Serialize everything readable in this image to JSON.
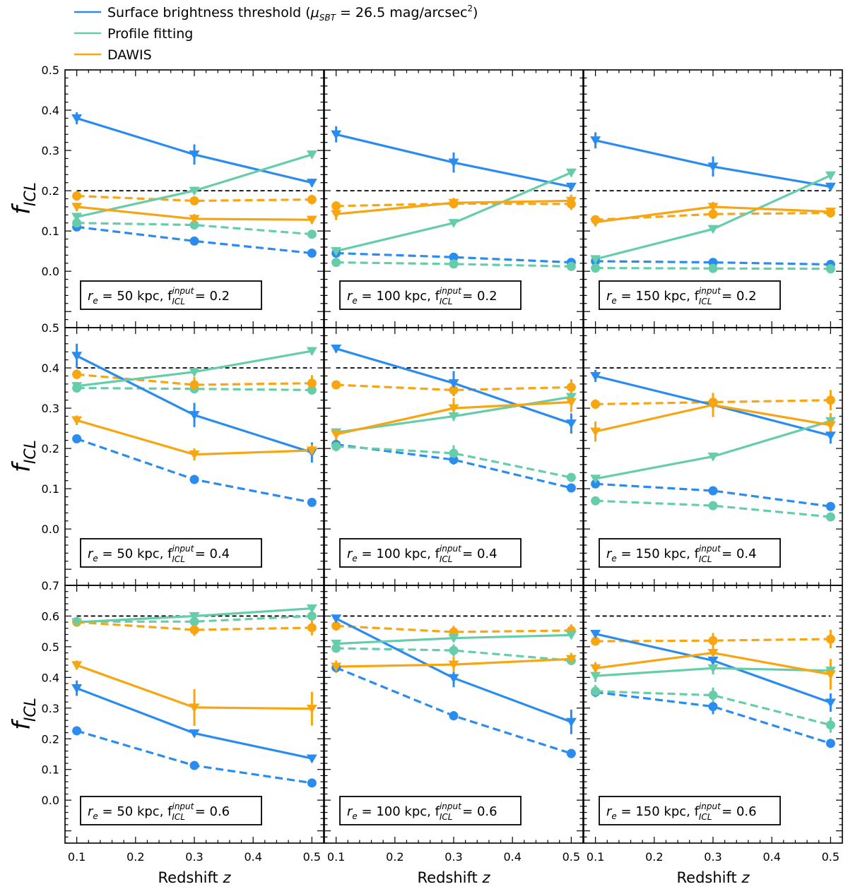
{
  "colors": {
    "sbt": "#2b8cf0",
    "profile": "#66cdaa",
    "dawis": "#f8a512",
    "reference": "#000000"
  },
  "legend": [
    {
      "key": "sbt",
      "label_main": "Surface brightness threshold (",
      "label_mu": "μ",
      "label_sub": "SBT",
      "label_rest": " = 26.5 mag/arcsec",
      "label_sup": "2",
      "label_close": ")"
    },
    {
      "key": "profile",
      "label_main": "Profile fitting"
    },
    {
      "key": "dawis",
      "label_main": "DAWIS"
    }
  ],
  "axes": {
    "xlabel": "Redshift z",
    "xlabel_text": "Redshift ",
    "xlabel_var": "z",
    "ylabel_main": "f",
    "ylabel_sub": "ICL",
    "xlim": [
      0.08,
      0.52
    ],
    "xticks": [
      0.1,
      0.2,
      0.3,
      0.4,
      0.5
    ],
    "xtick_labels": [
      "0.1",
      "0.2",
      "0.3",
      "0.4",
      "0.5"
    ],
    "rows": [
      {
        "ylim": [
          -0.14,
          0.5
        ],
        "yticks": [
          0.0,
          0.1,
          0.2,
          0.3,
          0.4,
          0.5
        ],
        "ytick_labels": [
          "0.0",
          "0.1",
          "0.2",
          "0.3",
          "0.4",
          "0.5"
        ]
      },
      {
        "ylim": [
          -0.14,
          0.5
        ],
        "yticks": [
          0.0,
          0.1,
          0.2,
          0.3,
          0.4,
          0.5
        ],
        "ytick_labels": [
          "0.0",
          "0.1",
          "0.2",
          "0.3",
          "0.4",
          "0.5"
        ]
      },
      {
        "ylim": [
          -0.14,
          0.7
        ],
        "yticks": [
          0.0,
          0.1,
          0.2,
          0.3,
          0.4,
          0.5,
          0.6,
          0.7
        ],
        "ytick_labels": [
          "0.0",
          "0.1",
          "0.2",
          "0.3",
          "0.4",
          "0.5",
          "0.6",
          "0.7"
        ]
      }
    ]
  },
  "chart_data": {
    "type": "line",
    "x": [
      0.1,
      0.3,
      0.5
    ],
    "xlabel": "Redshift z",
    "ylabel": "f_ICL",
    "line_styles": {
      "triangle": "solid line, downward triangle markers",
      "circle": "dashed line, circle markers"
    },
    "panels": [
      {
        "row": 0,
        "col": 0,
        "annot_re": "50",
        "annot_f": "0.2",
        "reference": 0.2,
        "series": [
          {
            "method": "sbt",
            "marker": "triangle",
            "y": [
              0.38,
              0.29,
              0.22
            ],
            "err": [
              0.015,
              0.025,
              0.01
            ]
          },
          {
            "method": "profile",
            "marker": "triangle",
            "y": [
              0.135,
              0.2,
              0.29
            ],
            "err": [
              0.01,
              0.01,
              0.008
            ]
          },
          {
            "method": "dawis",
            "marker": "triangle",
            "y": [
              0.16,
              0.13,
              0.128
            ],
            "err": [
              0.01,
              0.012,
              0.01
            ]
          },
          {
            "method": "sbt",
            "marker": "circle",
            "y": [
              0.11,
              0.075,
              0.045
            ],
            "err": [
              0.005,
              0.005,
              0.004
            ]
          },
          {
            "method": "profile",
            "marker": "circle",
            "y": [
              0.12,
              0.115,
              0.092
            ],
            "err": [
              0.01,
              0.01,
              0.008
            ]
          },
          {
            "method": "dawis",
            "marker": "circle",
            "y": [
              0.187,
              0.175,
              0.178
            ],
            "err": [
              0.012,
              0.01,
              0.012
            ]
          }
        ]
      },
      {
        "row": 0,
        "col": 1,
        "annot_re": "100",
        "annot_f": "0.2",
        "reference": 0.2,
        "series": [
          {
            "method": "sbt",
            "marker": "triangle",
            "y": [
              0.34,
              0.27,
              0.21
            ],
            "err": [
              0.02,
              0.025,
              0.01
            ]
          },
          {
            "method": "profile",
            "marker": "triangle",
            "y": [
              0.05,
              0.12,
              0.245
            ],
            "err": [
              0.008,
              0.008,
              0.01
            ]
          },
          {
            "method": "dawis",
            "marker": "triangle",
            "y": [
              0.142,
              0.17,
              0.175
            ],
            "err": [
              0.015,
              0.012,
              0.015
            ]
          },
          {
            "method": "sbt",
            "marker": "circle",
            "y": [
              0.045,
              0.035,
              0.022
            ],
            "err": [
              0.004,
              0.004,
              0.003
            ]
          },
          {
            "method": "profile",
            "marker": "circle",
            "y": [
              0.022,
              0.018,
              0.012
            ],
            "err": [
              0.004,
              0.004,
              0.003
            ]
          },
          {
            "method": "dawis",
            "marker": "circle",
            "y": [
              0.162,
              0.168,
              0.167
            ],
            "err": [
              0.012,
              0.012,
              0.015
            ]
          }
        ]
      },
      {
        "row": 0,
        "col": 2,
        "annot_re": "150",
        "annot_f": "0.2",
        "reference": 0.2,
        "series": [
          {
            "method": "sbt",
            "marker": "triangle",
            "y": [
              0.325,
              0.26,
              0.21
            ],
            "err": [
              0.02,
              0.025,
              0.01
            ]
          },
          {
            "method": "profile",
            "marker": "triangle",
            "y": [
              0.03,
              0.105,
              0.238
            ],
            "err": [
              0.008,
              0.008,
              0.01
            ]
          },
          {
            "method": "dawis",
            "marker": "triangle",
            "y": [
              0.122,
              0.16,
              0.148
            ],
            "err": [
              0.01,
              0.012,
              0.01
            ]
          },
          {
            "method": "sbt",
            "marker": "circle",
            "y": [
              0.025,
              0.022,
              0.017
            ],
            "err": [
              0.004,
              0.004,
              0.003
            ]
          },
          {
            "method": "profile",
            "marker": "circle",
            "y": [
              0.008,
              0.007,
              0.006
            ],
            "err": [
              0.003,
              0.003,
              0.002
            ]
          },
          {
            "method": "dawis",
            "marker": "circle",
            "y": [
              0.128,
              0.142,
              0.145
            ],
            "err": [
              0.01,
              0.012,
              0.012
            ]
          }
        ]
      },
      {
        "row": 1,
        "col": 0,
        "annot_re": "50",
        "annot_f": "0.4",
        "reference": 0.4,
        "series": [
          {
            "method": "sbt",
            "marker": "triangle",
            "y": [
              0.43,
              0.283,
              0.19
            ],
            "err": [
              0.03,
              0.03,
              0.025
            ]
          },
          {
            "method": "profile",
            "marker": "triangle",
            "y": [
              0.355,
              0.39,
              0.442
            ],
            "err": [
              0.01,
              0.01,
              0.008
            ]
          },
          {
            "method": "dawis",
            "marker": "triangle",
            "y": [
              0.27,
              0.185,
              0.195
            ],
            "err": [
              0.012,
              0.015,
              0.015
            ]
          },
          {
            "method": "sbt",
            "marker": "circle",
            "y": [
              0.224,
              0.123,
              0.066
            ],
            "err": [
              0.006,
              0.008,
              0.006
            ]
          },
          {
            "method": "profile",
            "marker": "circle",
            "y": [
              0.35,
              0.348,
              0.345
            ],
            "err": [
              0.008,
              0.01,
              0.01
            ]
          },
          {
            "method": "dawis",
            "marker": "circle",
            "y": [
              0.384,
              0.358,
              0.362
            ],
            "err": [
              0.012,
              0.02,
              0.02
            ]
          }
        ]
      },
      {
        "row": 1,
        "col": 1,
        "annot_re": "100",
        "annot_f": "0.4",
        "reference": 0.4,
        "series": [
          {
            "method": "sbt",
            "marker": "triangle",
            "y": [
              0.448,
              0.362,
              0.262
            ],
            "err": [
              0.01,
              0.03,
              0.025
            ]
          },
          {
            "method": "profile",
            "marker": "triangle",
            "y": [
              0.24,
              0.28,
              0.328
            ],
            "err": [
              0.01,
              0.012,
              0.012
            ]
          },
          {
            "method": "dawis",
            "marker": "triangle",
            "y": [
              0.235,
              0.3,
              0.315
            ],
            "err": [
              0.015,
              0.025,
              0.025
            ]
          },
          {
            "method": "sbt",
            "marker": "circle",
            "y": [
              0.21,
              0.172,
              0.102
            ],
            "err": [
              0.01,
              0.012,
              0.008
            ]
          },
          {
            "method": "profile",
            "marker": "circle",
            "y": [
              0.205,
              0.188,
              0.128
            ],
            "err": [
              0.012,
              0.02,
              0.01
            ]
          },
          {
            "method": "dawis",
            "marker": "circle",
            "y": [
              0.358,
              0.345,
              0.352
            ],
            "err": [
              0.01,
              0.015,
              0.02
            ]
          }
        ]
      },
      {
        "row": 1,
        "col": 2,
        "annot_re": "150",
        "annot_f": "0.4",
        "reference": 0.4,
        "series": [
          {
            "method": "sbt",
            "marker": "triangle",
            "y": [
              0.38,
              0.308,
              0.232
            ],
            "err": [
              0.015,
              0.025,
              0.02
            ]
          },
          {
            "method": "profile",
            "marker": "triangle",
            "y": [
              0.125,
              0.18,
              0.268
            ],
            "err": [
              0.008,
              0.008,
              0.012
            ]
          },
          {
            "method": "dawis",
            "marker": "triangle",
            "y": [
              0.242,
              0.308,
              0.258
            ],
            "err": [
              0.025,
              0.03,
              0.03
            ]
          },
          {
            "method": "sbt",
            "marker": "circle",
            "y": [
              0.112,
              0.095,
              0.056
            ],
            "err": [
              0.008,
              0.008,
              0.006
            ]
          },
          {
            "method": "profile",
            "marker": "circle",
            "y": [
              0.07,
              0.058,
              0.03
            ],
            "err": [
              0.008,
              0.008,
              0.005
            ]
          },
          {
            "method": "dawis",
            "marker": "circle",
            "y": [
              0.31,
              0.315,
              0.32
            ],
            "err": [
              0.012,
              0.015,
              0.025
            ]
          }
        ]
      },
      {
        "row": 2,
        "col": 0,
        "annot_re": "50",
        "annot_f": "0.6",
        "reference": 0.6,
        "series": [
          {
            "method": "sbt",
            "marker": "triangle",
            "y": [
              0.365,
              0.218,
              0.136
            ],
            "err": [
              0.025,
              0.01,
              0.012
            ]
          },
          {
            "method": "profile",
            "marker": "triangle",
            "y": [
              0.58,
              0.6,
              0.625
            ],
            "err": [
              0.01,
              0.012,
              0.01
            ]
          },
          {
            "method": "dawis",
            "marker": "triangle",
            "y": [
              0.44,
              0.302,
              0.298
            ],
            "err": [
              0.015,
              0.06,
              0.055
            ]
          },
          {
            "method": "sbt",
            "marker": "circle",
            "y": [
              0.226,
              0.113,
              0.056
            ],
            "err": [
              0.006,
              0.008,
              0.006
            ]
          },
          {
            "method": "profile",
            "marker": "circle",
            "y": [
              0.582,
              0.582,
              0.6
            ],
            "err": [
              0.01,
              0.015,
              0.01
            ]
          },
          {
            "method": "dawis",
            "marker": "circle",
            "y": [
              0.58,
              0.555,
              0.562
            ],
            "err": [
              0.012,
              0.02,
              0.025
            ]
          }
        ]
      },
      {
        "row": 2,
        "col": 1,
        "annot_re": "100",
        "annot_f": "0.6",
        "reference": 0.6,
        "series": [
          {
            "method": "sbt",
            "marker": "triangle",
            "y": [
              0.592,
              0.398,
              0.255
            ],
            "err": [
              0.01,
              0.03,
              0.04
            ]
          },
          {
            "method": "profile",
            "marker": "triangle",
            "y": [
              0.51,
              0.528,
              0.538
            ],
            "err": [
              0.012,
              0.012,
              0.01
            ]
          },
          {
            "method": "dawis",
            "marker": "triangle",
            "y": [
              0.435,
              0.442,
              0.46
            ],
            "err": [
              0.02,
              0.025,
              0.02
            ]
          },
          {
            "method": "sbt",
            "marker": "circle",
            "y": [
              0.432,
              0.275,
              0.152
            ],
            "err": [
              0.012,
              0.015,
              0.015
            ]
          },
          {
            "method": "profile",
            "marker": "circle",
            "y": [
              0.495,
              0.488,
              0.455
            ],
            "err": [
              0.012,
              0.02,
              0.012
            ]
          },
          {
            "method": "dawis",
            "marker": "circle",
            "y": [
              0.568,
              0.548,
              0.553
            ],
            "err": [
              0.015,
              0.02,
              0.02
            ]
          }
        ]
      },
      {
        "row": 2,
        "col": 2,
        "annot_re": "150",
        "annot_f": "0.6",
        "reference": 0.6,
        "series": [
          {
            "method": "sbt",
            "marker": "triangle",
            "y": [
              0.542,
              0.455,
              0.318
            ],
            "err": [
              0.01,
              0.025,
              0.03
            ]
          },
          {
            "method": "profile",
            "marker": "triangle",
            "y": [
              0.405,
              0.43,
              0.422
            ],
            "err": [
              0.02,
              0.02,
              0.02
            ]
          },
          {
            "method": "dawis",
            "marker": "triangle",
            "y": [
              0.43,
              0.48,
              0.41
            ],
            "err": [
              0.02,
              0.02,
              0.05
            ]
          },
          {
            "method": "sbt",
            "marker": "circle",
            "y": [
              0.352,
              0.305,
              0.185
            ],
            "err": [
              0.012,
              0.025,
              0.01
            ]
          },
          {
            "method": "profile",
            "marker": "circle",
            "y": [
              0.355,
              0.342,
              0.245
            ],
            "err": [
              0.02,
              0.025,
              0.025
            ]
          },
          {
            "method": "dawis",
            "marker": "circle",
            "y": [
              0.518,
              0.52,
              0.525
            ],
            "err": [
              0.012,
              0.025,
              0.03
            ]
          }
        ]
      }
    ]
  }
}
